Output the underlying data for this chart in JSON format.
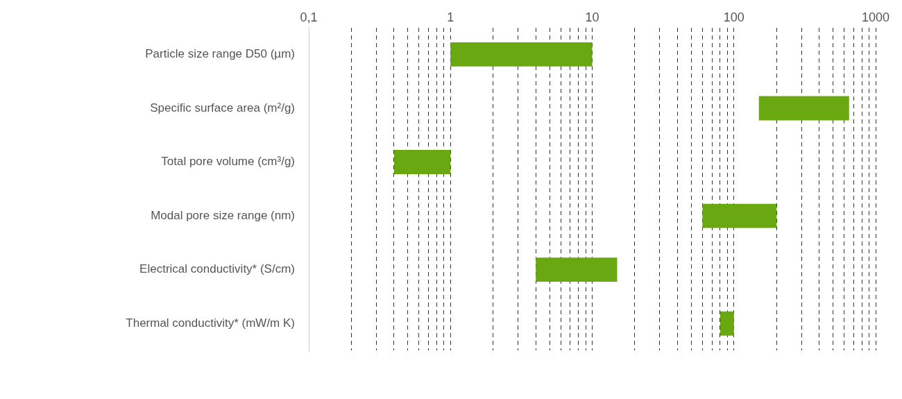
{
  "chart_data": {
    "type": "bar",
    "orientation": "horizontal",
    "log": "x",
    "categories": [
      "Particle size range D50 (µm)",
      "Specific surface area (m²/g)",
      "Total pore volume (cm³/g)",
      "Modal pore size range (nm)",
      "Electrical conductivity* (S/cm)",
      "Thermal conductivity* (mW/m K)"
    ],
    "base": [
      1,
      150,
      0.4,
      60,
      4,
      80
    ],
    "values": [
      9,
      500,
      0.6,
      140,
      11,
      20
    ],
    "color": "#6aa812",
    "xlim": [
      0.1,
      1000
    ],
    "xticks": [
      {
        "value": 0.1,
        "label": "0,1"
      },
      {
        "value": 0.2,
        "label": null
      },
      {
        "value": 0.3,
        "label": null
      },
      {
        "value": 0.4,
        "label": null
      },
      {
        "value": 0.5,
        "label": null
      },
      {
        "value": 0.6,
        "label": null
      },
      {
        "value": 0.7,
        "label": null
      },
      {
        "value": 0.8,
        "label": null
      },
      {
        "value": 0.9,
        "label": null
      },
      1,
      {
        "value": 2,
        "label": null
      },
      {
        "value": 3,
        "label": null
      },
      {
        "value": 4,
        "label": null
      },
      {
        "value": 5,
        "label": null
      },
      {
        "value": 6,
        "label": null
      },
      {
        "value": 7,
        "label": null
      },
      {
        "value": 8,
        "label": null
      },
      {
        "value": 9,
        "label": null
      },
      10,
      {
        "value": 20,
        "label": null
      },
      {
        "value": 30,
        "label": null
      },
      {
        "value": 40,
        "label": null
      },
      {
        "value": 50,
        "label": null
      },
      {
        "value": 60,
        "label": null
      },
      {
        "value": 70,
        "label": null
      },
      {
        "value": 80,
        "label": null
      },
      {
        "value": 90,
        "label": null
      },
      100,
      {
        "value": 200,
        "label": null
      },
      {
        "value": 300,
        "label": null
      },
      {
        "value": 400,
        "label": null
      },
      {
        "value": 500,
        "label": null
      },
      {
        "value": 600,
        "label": null
      },
      {
        "value": 700,
        "label": null
      },
      {
        "value": 800,
        "label": null
      },
      {
        "value": 900,
        "label": null
      },
      1000
    ],
    "grid": "x",
    "legend": false
  }
}
